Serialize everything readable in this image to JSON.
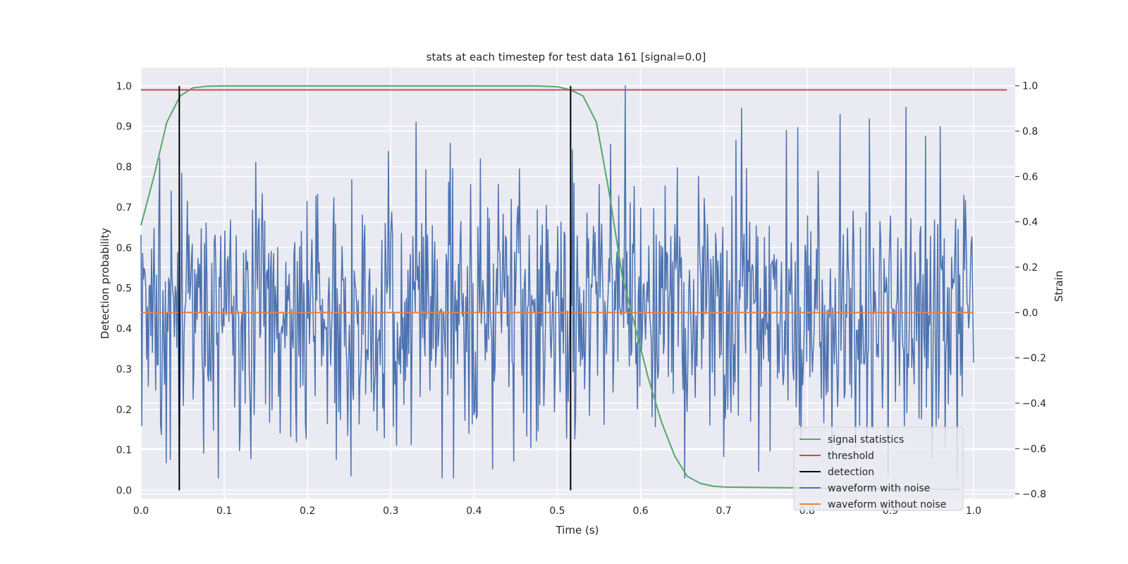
{
  "chart_data": {
    "type": "line",
    "title": "stats at each timestep for test data 161 [signal=0.0]",
    "xlabel": "Time (s)",
    "ylabel": "Detection probability",
    "y2label": "Strain",
    "xlim": [
      0.0,
      1.05
    ],
    "ylim": [
      -0.02,
      1.045
    ],
    "y2lim": [
      -0.82,
      1.08
    ],
    "xticks": [
      "0.0",
      "0.1",
      "0.2",
      "0.3",
      "0.4",
      "0.5",
      "0.6",
      "0.7",
      "0.8",
      "0.9",
      "1.0"
    ],
    "yticks": [
      "0.0",
      "0.1",
      "0.2",
      "0.3",
      "0.4",
      "0.5",
      "0.6",
      "0.7",
      "0.8",
      "0.9",
      "1.0"
    ],
    "y2ticks": [
      "−0.8",
      "−0.6",
      "−0.4",
      "−0.2",
      "0.0",
      "0.2",
      "0.4",
      "0.6",
      "0.8",
      "1.0"
    ],
    "grid": true,
    "legend_position": "lower-right",
    "series": [
      {
        "name": "signal statistics",
        "axis": "left",
        "color": "#55a868",
        "x": [
          0.0,
          0.016,
          0.031,
          0.047,
          0.062,
          0.078,
          0.1,
          0.2,
          0.3,
          0.4,
          0.47,
          0.5,
          0.516,
          0.531,
          0.547,
          0.562,
          0.578,
          0.594,
          0.609,
          0.625,
          0.641,
          0.656,
          0.672,
          0.688,
          0.703,
          0.75,
          0.8,
          0.85,
          0.9,
          0.95,
          0.984
        ],
        "y": [
          0.655,
          0.78,
          0.91,
          0.975,
          0.995,
          0.999,
          1.0,
          1.0,
          1.0,
          1.0,
          1.0,
          0.998,
          0.99,
          0.975,
          0.91,
          0.74,
          0.53,
          0.4,
          0.28,
          0.17,
          0.085,
          0.035,
          0.017,
          0.01,
          0.008,
          0.007,
          0.006,
          0.005,
          0.004,
          0.003,
          0.002
        ]
      },
      {
        "name": "threshold",
        "axis": "left",
        "color": "#c44e52",
        "x": [
          0.0,
          1.04
        ],
        "y": [
          0.99,
          0.99
        ]
      },
      {
        "name": "detection",
        "axis": "left",
        "color": "#000000",
        "events": [
          {
            "x": 0.046,
            "y": [
              0.0,
              1.0
            ]
          },
          {
            "x": 0.516,
            "y": [
              0.0,
              1.0
            ]
          }
        ]
      },
      {
        "name": "waveform with noise",
        "axis": "right",
        "color": "#4c72b0",
        "x_range": [
          0.0,
          1.0
        ],
        "samples": 1024,
        "seed": 161,
        "std": 0.3,
        "y_range": [
          -0.73,
          1.0
        ],
        "notable_points": [
          {
            "x": 0.093,
            "y": -0.73
          },
          {
            "x": 0.33,
            "y": 0.84
          },
          {
            "x": 0.422,
            "y": -0.69
          },
          {
            "x": 0.582,
            "y": 1.0
          },
          {
            "x": 0.742,
            "y": -0.7
          },
          {
            "x": 0.96,
            "y": 0.82
          }
        ]
      },
      {
        "name": "waveform without noise",
        "axis": "right",
        "color": "#dd8452",
        "x": [
          0.0,
          1.0
        ],
        "y": [
          0.0,
          0.0
        ]
      }
    ]
  }
}
